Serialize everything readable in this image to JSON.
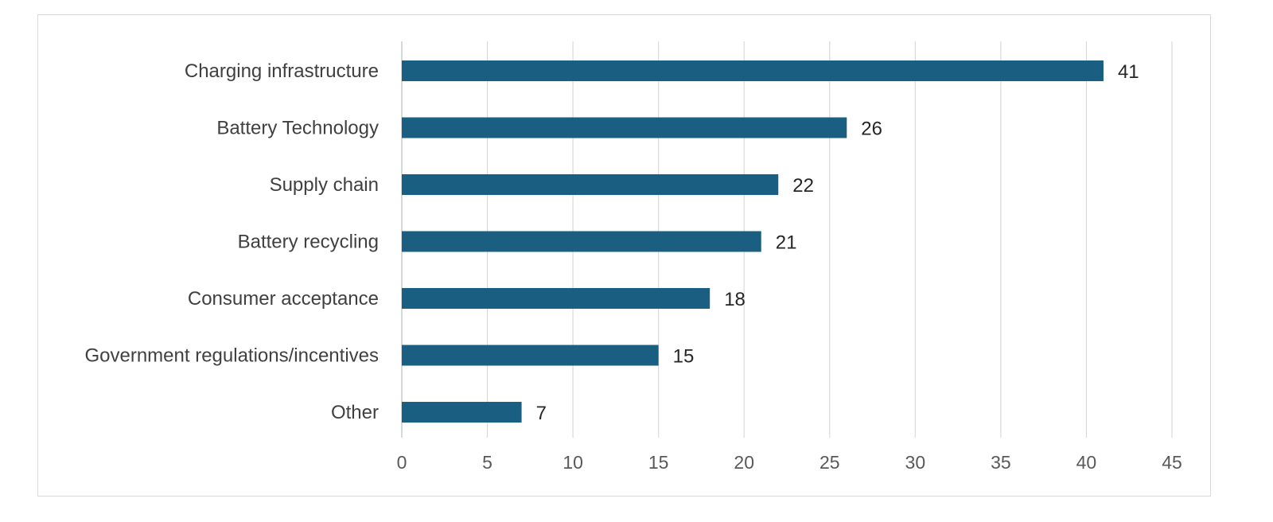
{
  "chart_data": {
    "type": "bar",
    "orientation": "horizontal",
    "categories": [
      "Charging infrastructure",
      "Battery Technology",
      "Supply chain",
      "Battery recycling",
      "Consumer acceptance",
      "Government regulations/incentives",
      "Other"
    ],
    "values": [
      41,
      26,
      22,
      21,
      18,
      15,
      7
    ],
    "xlim": [
      0,
      45
    ],
    "xticks": [
      "0",
      "5",
      "10",
      "15",
      "20",
      "25",
      "30",
      "35",
      "40",
      "45"
    ],
    "title": "",
    "xlabel": "",
    "ylabel": "",
    "grid": "vertical",
    "legend": "none",
    "data_labels": true,
    "bar_color": "#1a5f82"
  }
}
